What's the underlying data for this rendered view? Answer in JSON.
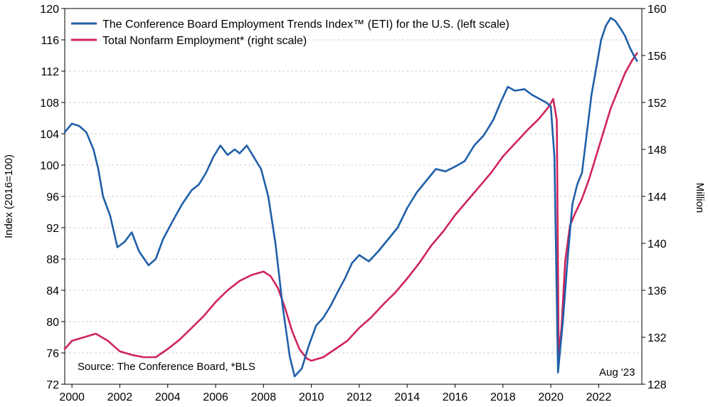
{
  "chart_data": {
    "type": "line",
    "legend_position": "top-left",
    "grid": true,
    "source": "Source: The Conference Board, *BLS",
    "note": "Aug '23",
    "ylabel_left": "Index (2016=100)",
    "ylabel_right": "Million",
    "xlim": [
      1999.7,
      2023.8
    ],
    "ylim_left": [
      72,
      120
    ],
    "ylim_right": [
      128,
      160
    ],
    "x_ticks": [
      "2000",
      "2002",
      "2004",
      "2006",
      "2008",
      "2010",
      "2012",
      "2014",
      "2016",
      "2018",
      "2020",
      "2022"
    ],
    "y_ticks_left": [
      "72",
      "76",
      "80",
      "84",
      "88",
      "92",
      "96",
      "100",
      "104",
      "108",
      "112",
      "116",
      "120"
    ],
    "y_ticks_right": [
      "128",
      "132",
      "136",
      "140",
      "144",
      "148",
      "152",
      "156",
      "160"
    ],
    "colors": {
      "eti": "#1f5fa8",
      "nonfarm": "#d0245a"
    },
    "series": [
      {
        "name": "The Conference Board Employment Trends Index™ (ETI) for the U.S. (left scale)",
        "axis": "left",
        "points": [
          [
            1999.7,
            104.2
          ],
          [
            2000.0,
            105.3
          ],
          [
            2000.3,
            105.0
          ],
          [
            2000.6,
            104.2
          ],
          [
            2000.9,
            102.0
          ],
          [
            2001.1,
            99.5
          ],
          [
            2001.3,
            96.0
          ],
          [
            2001.6,
            93.5
          ],
          [
            2001.9,
            89.5
          ],
          [
            2002.2,
            90.2
          ],
          [
            2002.5,
            91.4
          ],
          [
            2002.8,
            89.0
          ],
          [
            2003.2,
            87.2
          ],
          [
            2003.5,
            88.0
          ],
          [
            2003.8,
            90.5
          ],
          [
            2004.2,
            92.8
          ],
          [
            2004.6,
            95.0
          ],
          [
            2005.0,
            96.8
          ],
          [
            2005.3,
            97.5
          ],
          [
            2005.6,
            99.0
          ],
          [
            2005.9,
            101.0
          ],
          [
            2006.2,
            102.5
          ],
          [
            2006.5,
            101.3
          ],
          [
            2006.8,
            102.0
          ],
          [
            2007.0,
            101.5
          ],
          [
            2007.3,
            102.5
          ],
          [
            2007.6,
            101.0
          ],
          [
            2007.9,
            99.5
          ],
          [
            2008.2,
            96.0
          ],
          [
            2008.5,
            90.0
          ],
          [
            2008.8,
            82.0
          ],
          [
            2009.1,
            75.5
          ],
          [
            2009.3,
            73.0
          ],
          [
            2009.6,
            74.0
          ],
          [
            2009.9,
            77.0
          ],
          [
            2010.2,
            79.5
          ],
          [
            2010.5,
            80.5
          ],
          [
            2010.8,
            82.0
          ],
          [
            2011.1,
            83.8
          ],
          [
            2011.4,
            85.5
          ],
          [
            2011.7,
            87.5
          ],
          [
            2012.0,
            88.5
          ],
          [
            2012.4,
            87.7
          ],
          [
            2012.8,
            89.0
          ],
          [
            2013.2,
            90.5
          ],
          [
            2013.6,
            92.0
          ],
          [
            2014.0,
            94.5
          ],
          [
            2014.4,
            96.5
          ],
          [
            2014.8,
            98.0
          ],
          [
            2015.2,
            99.5
          ],
          [
            2015.6,
            99.2
          ],
          [
            2016.0,
            99.8
          ],
          [
            2016.4,
            100.5
          ],
          [
            2016.8,
            102.5
          ],
          [
            2017.2,
            103.8
          ],
          [
            2017.6,
            105.8
          ],
          [
            2017.9,
            108.0
          ],
          [
            2018.2,
            110.0
          ],
          [
            2018.5,
            109.5
          ],
          [
            2018.9,
            109.7
          ],
          [
            2019.2,
            109.0
          ],
          [
            2019.5,
            108.5
          ],
          [
            2019.8,
            108.0
          ],
          [
            2020.0,
            107.5
          ],
          [
            2020.15,
            101.0
          ],
          [
            2020.3,
            73.5
          ],
          [
            2020.5,
            80.0
          ],
          [
            2020.7,
            88.0
          ],
          [
            2020.9,
            95.0
          ],
          [
            2021.1,
            97.5
          ],
          [
            2021.3,
            99.0
          ],
          [
            2021.5,
            104.0
          ],
          [
            2021.7,
            109.0
          ],
          [
            2021.9,
            112.5
          ],
          [
            2022.1,
            116.0
          ],
          [
            2022.3,
            117.8
          ],
          [
            2022.5,
            118.8
          ],
          [
            2022.7,
            118.4
          ],
          [
            2022.9,
            117.5
          ],
          [
            2023.1,
            116.5
          ],
          [
            2023.3,
            115.0
          ],
          [
            2023.5,
            113.8
          ],
          [
            2023.6,
            113.3
          ]
        ]
      },
      {
        "name": "Total Nonfarm Employment* (right scale)",
        "axis": "right",
        "points": [
          [
            1999.7,
            131.0
          ],
          [
            2000.0,
            131.7
          ],
          [
            2000.5,
            132.0
          ],
          [
            2001.0,
            132.3
          ],
          [
            2001.5,
            131.7
          ],
          [
            2002.0,
            130.8
          ],
          [
            2002.5,
            130.5
          ],
          [
            2003.0,
            130.3
          ],
          [
            2003.5,
            130.3
          ],
          [
            2004.0,
            131.0
          ],
          [
            2004.5,
            131.8
          ],
          [
            2005.0,
            132.8
          ],
          [
            2005.5,
            133.8
          ],
          [
            2006.0,
            135.0
          ],
          [
            2006.5,
            136.0
          ],
          [
            2007.0,
            136.8
          ],
          [
            2007.5,
            137.3
          ],
          [
            2008.0,
            137.6
          ],
          [
            2008.3,
            137.2
          ],
          [
            2008.6,
            136.2
          ],
          [
            2008.9,
            134.5
          ],
          [
            2009.2,
            132.5
          ],
          [
            2009.5,
            131.0
          ],
          [
            2009.8,
            130.2
          ],
          [
            2010.0,
            130.0
          ],
          [
            2010.5,
            130.3
          ],
          [
            2011.0,
            131.0
          ],
          [
            2011.5,
            131.7
          ],
          [
            2012.0,
            132.8
          ],
          [
            2012.5,
            133.7
          ],
          [
            2013.0,
            134.8
          ],
          [
            2013.5,
            135.8
          ],
          [
            2014.0,
            137.0
          ],
          [
            2014.5,
            138.3
          ],
          [
            2015.0,
            139.8
          ],
          [
            2015.5,
            141.0
          ],
          [
            2016.0,
            142.4
          ],
          [
            2016.5,
            143.6
          ],
          [
            2017.0,
            144.8
          ],
          [
            2017.5,
            146.0
          ],
          [
            2018.0,
            147.4
          ],
          [
            2018.5,
            148.5
          ],
          [
            2019.0,
            149.6
          ],
          [
            2019.5,
            150.6
          ],
          [
            2019.9,
            151.6
          ],
          [
            2020.1,
            152.3
          ],
          [
            2020.25,
            150.5
          ],
          [
            2020.33,
            130.2
          ],
          [
            2020.45,
            133.0
          ],
          [
            2020.6,
            138.5
          ],
          [
            2020.8,
            141.5
          ],
          [
            2021.0,
            142.5
          ],
          [
            2021.3,
            143.8
          ],
          [
            2021.6,
            145.5
          ],
          [
            2021.9,
            147.5
          ],
          [
            2022.2,
            149.5
          ],
          [
            2022.5,
            151.5
          ],
          [
            2022.8,
            153.0
          ],
          [
            2023.1,
            154.5
          ],
          [
            2023.4,
            155.6
          ],
          [
            2023.6,
            156.2
          ]
        ]
      }
    ]
  }
}
